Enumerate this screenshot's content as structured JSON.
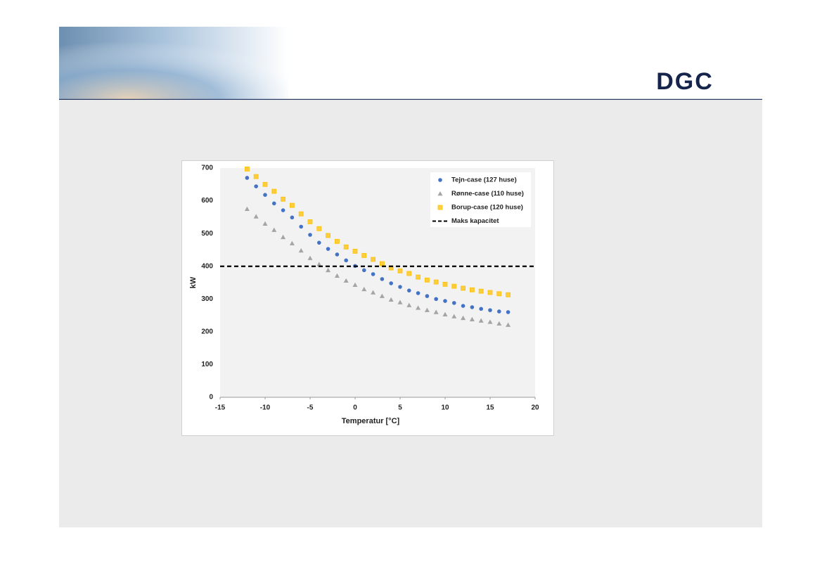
{
  "header": {
    "logo": "DGC"
  },
  "chart_data": {
    "type": "scatter",
    "xlabel": "Temperatur [°C]",
    "ylabel": "kW",
    "x": [
      -12,
      -11,
      -10,
      -9,
      -8,
      -7,
      -6,
      -5,
      -4,
      -3,
      -2,
      -1,
      0,
      1,
      2,
      3,
      4,
      5,
      6,
      7,
      8,
      9,
      10,
      11,
      12,
      13,
      14,
      15,
      16,
      17
    ],
    "series": [
      {
        "name": "Tejn-case (127 huse)",
        "color": "#4472c4",
        "marker": "circle",
        "values": [
          670,
          644,
          618,
          592,
          571,
          549,
          521,
          496,
          472,
          453,
          436,
          418,
          401,
          388,
          376,
          361,
          348,
          337,
          326,
          318,
          309,
          300,
          294,
          288,
          279,
          275,
          270,
          266,
          262,
          260
        ]
      },
      {
        "name": "Rønne-case (110 huse)",
        "color": "#a5a5a5",
        "marker": "triangle",
        "values": [
          575,
          552,
          530,
          511,
          489,
          470,
          448,
          425,
          406,
          388,
          371,
          356,
          343,
          330,
          320,
          309,
          298,
          290,
          281,
          273,
          266,
          260,
          253,
          247,
          242,
          238,
          234,
          230,
          225,
          221
        ]
      },
      {
        "name": "Borup-case (120 huse)",
        "color": "#ffc000",
        "marker": "square",
        "values": [
          697,
          674,
          650,
          629,
          605,
          586,
          560,
          536,
          515,
          494,
          476,
          459,
          446,
          433,
          421,
          408,
          395,
          386,
          378,
          367,
          358,
          352,
          345,
          339,
          333,
          328,
          324,
          320,
          316,
          313
        ]
      }
    ],
    "reference_line": {
      "name": "Maks kapacitet",
      "value": 400,
      "color": "#000000"
    },
    "xlim": [
      -15,
      20
    ],
    "xticks": [
      -15,
      -10,
      -5,
      0,
      5,
      10,
      15,
      20
    ],
    "ylim": [
      0,
      700
    ],
    "yticks": [
      0,
      100,
      200,
      300,
      400,
      500,
      600,
      700
    ],
    "grid": false,
    "legend": "upper right"
  }
}
